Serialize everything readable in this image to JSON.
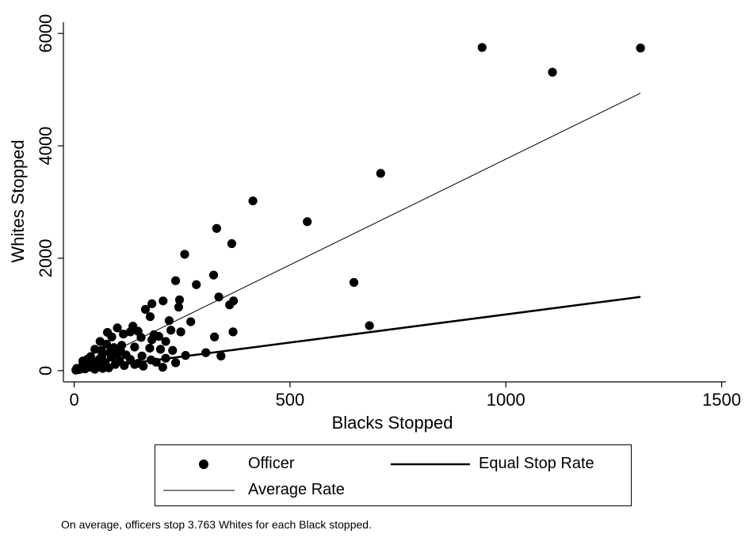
{
  "chart_data": {
    "type": "scatter",
    "xlabel": "Blacks Stopped",
    "ylabel": "Whites Stopped",
    "xlim": [
      -25,
      1510
    ],
    "ylim": [
      -200,
      6200
    ],
    "xticks": [
      "0",
      "500",
      "1000",
      "1500"
    ],
    "yticks": [
      "0",
      "2000",
      "4000",
      "6000"
    ],
    "grid": false,
    "legend_position": "bottom",
    "legend": [
      "Officer",
      "Equal Stop Rate",
      "Average Rate"
    ],
    "series": [
      {
        "name": "Officer",
        "kind": "points",
        "points": [
          [
            945,
            5750
          ],
          [
            1312,
            5740
          ],
          [
            1108,
            5310
          ],
          [
            710,
            3510
          ],
          [
            414,
            3020
          ],
          [
            540,
            2650
          ],
          [
            330,
            2530
          ],
          [
            365,
            2260
          ],
          [
            256,
            2070
          ],
          [
            323,
            1700
          ],
          [
            235,
            1600
          ],
          [
            283,
            1530
          ],
          [
            648,
            1570
          ],
          [
            335,
            1310
          ],
          [
            369,
            1240
          ],
          [
            360,
            1170
          ],
          [
            206,
            1240
          ],
          [
            244,
            1260
          ],
          [
            180,
            1190
          ],
          [
            165,
            1090
          ],
          [
            242,
            1130
          ],
          [
            220,
            890
          ],
          [
            270,
            870
          ],
          [
            176,
            960
          ],
          [
            684,
            800
          ],
          [
            368,
            690
          ],
          [
            224,
            720
          ],
          [
            247,
            690
          ],
          [
            185,
            640
          ],
          [
            196,
            610
          ],
          [
            136,
            790
          ],
          [
            100,
            760
          ],
          [
            148,
            700
          ],
          [
            130,
            690
          ],
          [
            77,
            680
          ],
          [
            114,
            650
          ],
          [
            87,
            600
          ],
          [
            180,
            550
          ],
          [
            212,
            520
          ],
          [
            325,
            600
          ],
          [
            155,
            590
          ],
          [
            60,
            520
          ],
          [
            75,
            470
          ],
          [
            110,
            450
          ],
          [
            140,
            420
          ],
          [
            92,
            410
          ],
          [
            175,
            400
          ],
          [
            48,
            380
          ],
          [
            200,
            380
          ],
          [
            228,
            360
          ],
          [
            305,
            320
          ],
          [
            100,
            300
          ],
          [
            120,
            280
          ],
          [
            65,
            280
          ],
          [
            258,
            270
          ],
          [
            157,
            260
          ],
          [
            38,
            250
          ],
          [
            86,
            240
          ],
          [
            212,
            220
          ],
          [
            340,
            260
          ],
          [
            130,
            200
          ],
          [
            58,
            200
          ],
          [
            178,
            190
          ],
          [
            105,
            180
          ],
          [
            20,
            170
          ],
          [
            42,
            160
          ],
          [
            72,
            150
          ],
          [
            235,
            140
          ],
          [
            148,
            130
          ],
          [
            27,
            120
          ],
          [
            95,
            110
          ],
          [
            55,
            95
          ],
          [
            116,
            90
          ],
          [
            160,
            80
          ],
          [
            205,
            60
          ],
          [
            18,
            70
          ],
          [
            35,
            60
          ],
          [
            80,
            50
          ],
          [
            6,
            40
          ],
          [
            12,
            20
          ],
          [
            4,
            10
          ],
          [
            25,
            30
          ],
          [
            48,
            25
          ],
          [
            66,
            40
          ],
          [
            140,
            110
          ],
          [
            190,
            150
          ],
          [
            83,
            330
          ],
          [
            63,
            360
          ],
          [
            108,
            340
          ],
          [
            30,
            200
          ]
        ]
      },
      {
        "name": "Equal Stop Rate",
        "kind": "line",
        "x": [
          0,
          1312
        ],
        "y": [
          0,
          1312
        ]
      },
      {
        "name": "Average Rate",
        "kind": "line",
        "x": [
          0,
          1312
        ],
        "y": [
          0,
          4937
        ]
      }
    ],
    "annotation": "On average, officers stop 3.763 Whites for each Black stopped."
  }
}
